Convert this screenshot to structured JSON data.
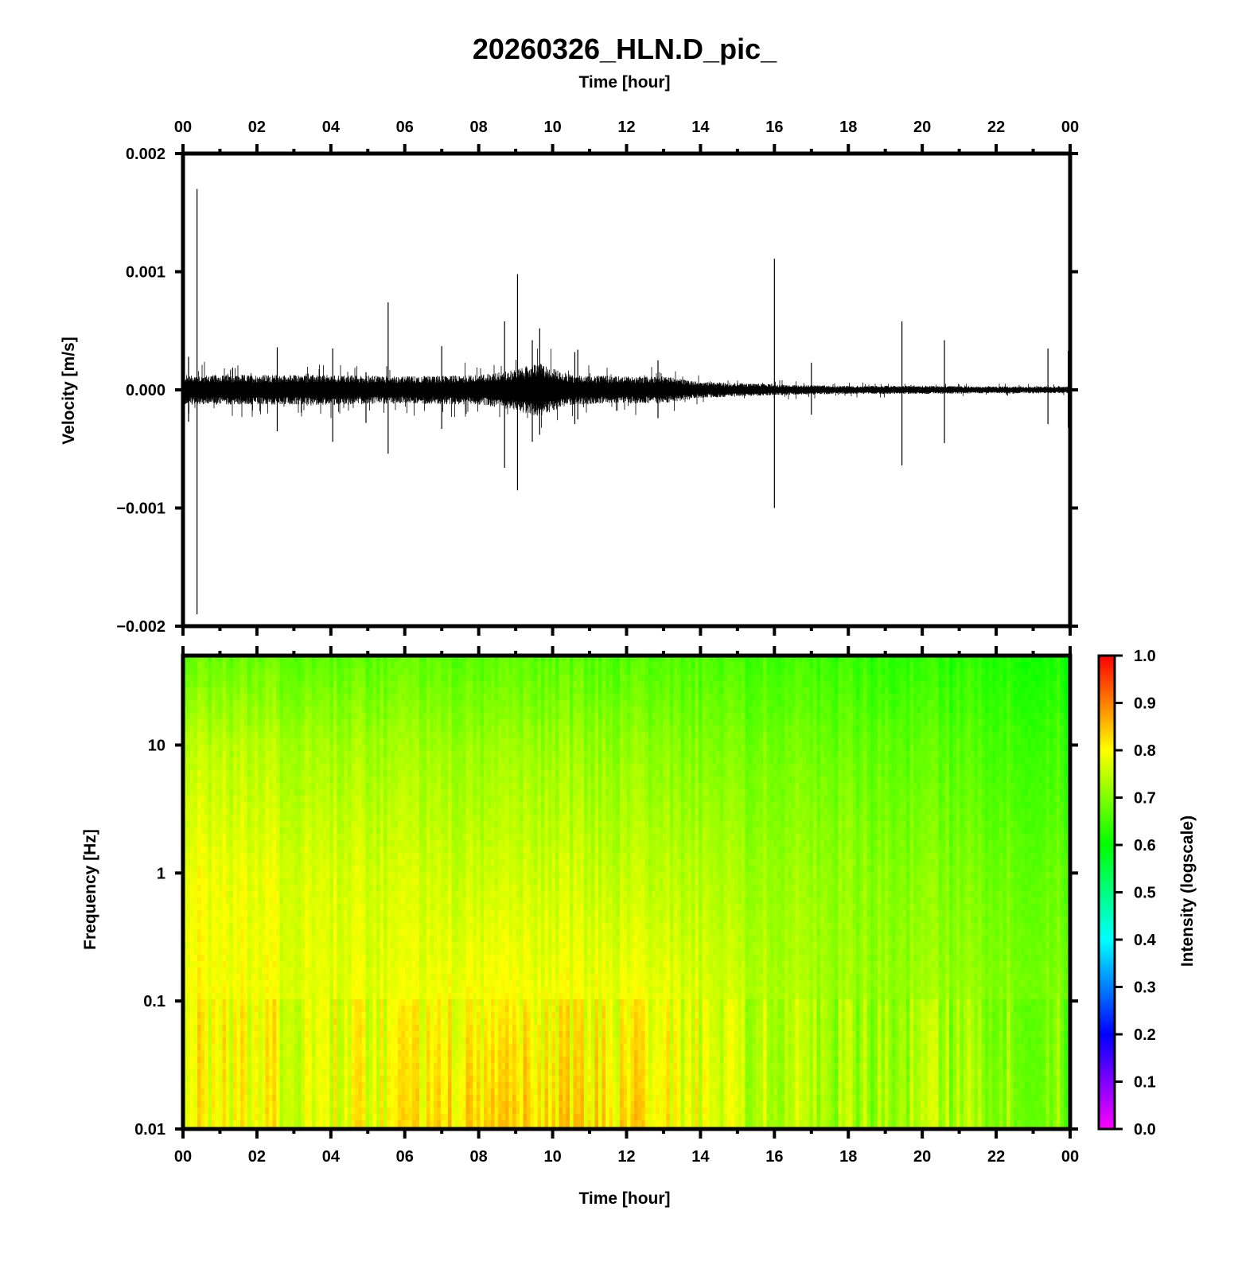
{
  "chart_data": [
    {
      "type": "line",
      "title": "20260326_HLN.D_pic_",
      "xlabel": "Time [hour]",
      "ylabel": "Velocity [m/s]",
      "xlim": [
        0,
        24
      ],
      "ylim": [
        -0.002,
        0.002
      ],
      "x_ticks": [
        "00",
        "02",
        "04",
        "06",
        "08",
        "10",
        "12",
        "14",
        "16",
        "18",
        "20",
        "22",
        "00"
      ],
      "y_ticks": [
        "0.002",
        "0.001",
        "0.000",
        "−0.001",
        "−0.002"
      ],
      "y_tick_values": [
        0.002,
        0.001,
        0.0,
        -0.001,
        -0.002
      ],
      "series": [
        {
          "color": "#000000",
          "noise_envelope": {
            "hours": [
              0,
              2,
              4,
              6,
              8,
              9,
              9.6,
              10.5,
              12,
              13,
              14,
              16,
              18,
              20,
              22,
              24
            ],
            "amplitude": [
              0.00011,
              0.00011,
              0.00011,
              0.0001,
              0.00011,
              0.00015,
              0.0002,
              0.00011,
              0.0001,
              0.0001,
              6e-05,
              4e-05,
              3e-05,
              3e-05,
              2.5e-05,
              2.5e-05
            ]
          },
          "spikes": [
            {
              "hour": 0.38,
              "max": 0.0017,
              "min": -0.0019
            },
            {
              "hour": 0.15,
              "max": 0.00028,
              "min": -0.00027
            },
            {
              "hour": 2.55,
              "max": 0.00036,
              "min": -0.00035
            },
            {
              "hour": 4.05,
              "max": 0.00035,
              "min": -0.00044
            },
            {
              "hour": 4.95,
              "max": 0.00015,
              "min": -0.00028
            },
            {
              "hour": 5.55,
              "max": 0.00074,
              "min": -0.00054
            },
            {
              "hour": 7.0,
              "max": 0.00037,
              "min": -0.00033
            },
            {
              "hour": 8.7,
              "max": 0.00058,
              "min": -0.00066
            },
            {
              "hour": 9.05,
              "max": 0.00098,
              "min": -0.00085
            },
            {
              "hour": 9.45,
              "max": 0.00042,
              "min": -0.00044
            },
            {
              "hour": 9.65,
              "max": 0.00052,
              "min": -0.00038
            },
            {
              "hour": 10.6,
              "max": 0.00032,
              "min": -0.00029
            },
            {
              "hour": 10.68,
              "max": 0.00034,
              "min": -0.00025
            },
            {
              "hour": 12.85,
              "max": 0.00025,
              "min": -0.00024
            },
            {
              "hour": 16.0,
              "max": 0.00111,
              "min": -0.001
            },
            {
              "hour": 17.0,
              "max": 0.00023,
              "min": -0.00021
            },
            {
              "hour": 19.45,
              "max": 0.00058,
              "min": -0.00064
            },
            {
              "hour": 20.6,
              "max": 0.00042,
              "min": -0.00045
            },
            {
              "hour": 23.4,
              "max": 0.00035,
              "min": -0.00029
            },
            {
              "hour": 23.95,
              "max": 0.00033,
              "min": -0.00032
            }
          ]
        }
      ]
    },
    {
      "type": "heatmap",
      "xlabel": "Time [hour]",
      "ylabel": "Frequency [Hz]",
      "xlim": [
        0,
        24
      ],
      "ylim": [
        0.01,
        50
      ],
      "y_scale": "log",
      "x_ticks": [
        "00",
        "02",
        "04",
        "06",
        "08",
        "10",
        "12",
        "14",
        "16",
        "18",
        "20",
        "22",
        "00"
      ],
      "y_ticks": [
        "10",
        "1",
        "0.1",
        "0.01"
      ],
      "y_tick_values": [
        10,
        1,
        0.1,
        0.01
      ],
      "colorbar": {
        "label": "Intensity (logscale)",
        "range": [
          0,
          1
        ],
        "ticks": [
          "1.0",
          "0.9",
          "0.8",
          "0.7",
          "0.6",
          "0.5",
          "0.4",
          "0.3",
          "0.2",
          "0.1",
          "0.0"
        ],
        "tick_values": [
          1.0,
          0.9,
          0.8,
          0.7,
          0.6,
          0.5,
          0.4,
          0.3,
          0.2,
          0.1,
          0.0
        ],
        "colors": [
          "#ff00ff",
          "#0000ff",
          "#00ffff",
          "#00ff00",
          "#ffff00",
          "#ff0000"
        ]
      },
      "intensity_grid": {
        "hours": [
          0,
          2,
          4,
          6,
          8,
          10,
          12,
          14,
          16,
          18,
          20,
          22,
          24
        ],
        "freqs": [
          0.01,
          0.1,
          1,
          10,
          50
        ],
        "values": [
          [
            0.8,
            0.79,
            0.78,
            0.8,
            0.84,
            0.82,
            0.82,
            0.78,
            0.74,
            0.72,
            0.73,
            0.72,
            0.7
          ],
          [
            0.8,
            0.79,
            0.78,
            0.78,
            0.8,
            0.79,
            0.79,
            0.77,
            0.74,
            0.72,
            0.72,
            0.71,
            0.7
          ],
          [
            0.79,
            0.78,
            0.77,
            0.76,
            0.76,
            0.76,
            0.75,
            0.74,
            0.72,
            0.71,
            0.7,
            0.69,
            0.68
          ],
          [
            0.75,
            0.74,
            0.73,
            0.72,
            0.72,
            0.72,
            0.71,
            0.7,
            0.69,
            0.68,
            0.67,
            0.66,
            0.65
          ],
          [
            0.68,
            0.68,
            0.67,
            0.67,
            0.67,
            0.67,
            0.66,
            0.66,
            0.65,
            0.64,
            0.63,
            0.63,
            0.62
          ]
        ]
      }
    }
  ]
}
